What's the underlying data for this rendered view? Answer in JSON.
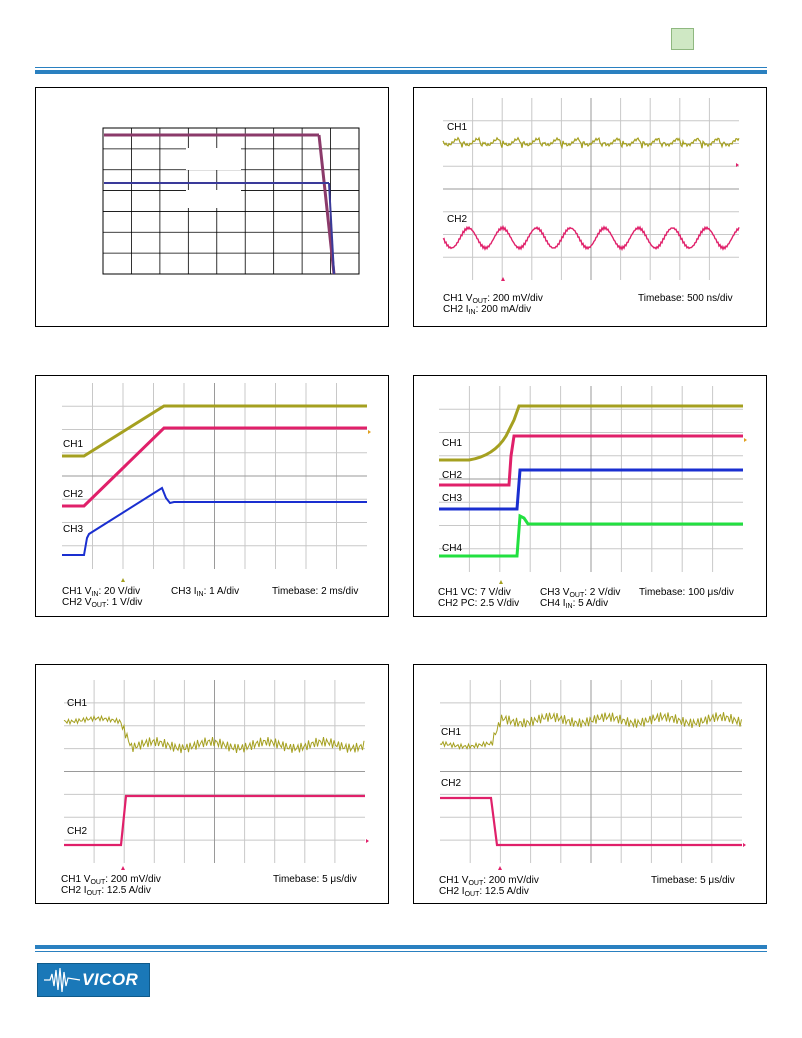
{
  "header": {
    "badge_color": "#cfe8c4"
  },
  "footer": {
    "logo_text": "VICOR",
    "logo_color": "#1a78b8"
  },
  "figures": {
    "derating": {
      "rows": 7,
      "cols": 9
    },
    "ripple": {
      "ch1_label": "CH1",
      "ch2_label": "CH2",
      "cap1_a": "CH1 V",
      "cap1_sub": "OUT",
      "cap1_b": ": 200 mV/div",
      "cap2_a": "CH2 I",
      "cap2_sub": "IN",
      "cap2_b": ": 200 mA/div",
      "timebase": "Timebase: 500 ns/div"
    },
    "startup": {
      "ch1_label": "CH1",
      "ch2_label": "CH2",
      "ch3_label": "CH3",
      "cap1_a": "CH1 V",
      "cap1_sub": "IN",
      "cap1_b": ": 20 V/div",
      "cap2_a": "CH2 V",
      "cap2_sub": "OUT",
      "cap2_b": ": 1 V/div",
      "cap3_a": "CH3 I",
      "cap3_sub": "IN",
      "cap3_b": ": 1 A/div",
      "timebase": "Timebase: 2 ms/div"
    },
    "enable": {
      "ch1_label": "CH1",
      "ch2_label": "CH2",
      "ch3_label": "CH3",
      "ch4_label": "CH4",
      "cap1": "CH1 VC: 7 V/div",
      "cap2": "CH2 PC: 2.5 V/div",
      "cap3_a": "CH3 V",
      "cap3_sub": "OUT",
      "cap3_b": ": 2 V/div",
      "cap4_a": "CH4 I",
      "cap4_sub": "IN",
      "cap4_b": ": 5 A/div",
      "timebase": "Timebase: 100 μs/div"
    },
    "load_step_up": {
      "ch1_label": "CH1",
      "ch2_label": "CH2",
      "cap1_a": "CH1 V",
      "cap1_sub": "OUT",
      "cap1_b": ": 200 mV/div",
      "cap2_a": "CH2 I",
      "cap2_sub": "OUT",
      "cap2_b": ": 12.5 A/div",
      "timebase": "Timebase: 5 μs/div"
    },
    "load_step_down": {
      "ch1_label": "CH1",
      "ch2_label": "CH2",
      "cap1_a": "CH1 V",
      "cap1_sub": "OUT",
      "cap1_b": ": 200 mV/div",
      "cap2_a": "CH2 I",
      "cap2_sub": "OUT",
      "cap2_b": ": 12.5 A/div",
      "timebase": "Timebase: 5 μs/div"
    }
  },
  "colors": {
    "ch_yellow": "#a5a020",
    "ch_pink": "#e0206a",
    "ch_blue": "#1a2fd0",
    "ch_green": "#22e040",
    "rule_blue": "#2a80c0"
  }
}
